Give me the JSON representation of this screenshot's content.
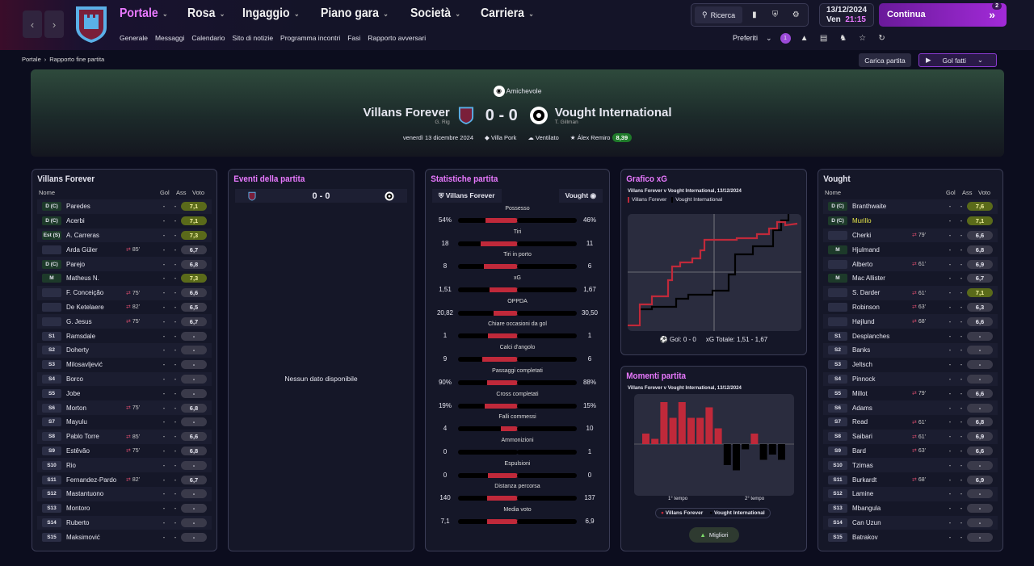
{
  "menu": {
    "items": [
      "Portale",
      "Rosa",
      "Ingaggio",
      "Piano gara",
      "Società",
      "Carriera"
    ],
    "sub": [
      "Generale",
      "Messaggi",
      "Calendario",
      "Sito di notizie",
      "Programma incontri",
      "Fasi",
      "Rapporto avversari"
    ]
  },
  "tools": {
    "search": "Ricerca"
  },
  "date": {
    "date": "13/12/2024",
    "day": "Ven",
    "time": "21:15"
  },
  "continua": {
    "label": "Continua",
    "badge": "2"
  },
  "pref": {
    "label": "Preferiti",
    "badge": "1"
  },
  "breadcrumb": {
    "root": "Portale",
    "current": "Rapporto fine partita"
  },
  "actions": {
    "carica": "Carica partita",
    "golfatti": "Gol fatti"
  },
  "match": {
    "competition": "Amichevole",
    "home": "Villans Forever",
    "home_coach": "G. Rig",
    "away": "Vought International",
    "away_coach": "T. Gillman",
    "score": "0 - 0",
    "date": "venerdì 13 dicembre 2024",
    "stadium": "Villa Pork",
    "weather": "Ventilato",
    "potm": "Álex Remiro",
    "potm_rating": "8,39"
  },
  "home": {
    "title": "Villans Forever",
    "cols": [
      "Nome",
      "Gol",
      "Ass",
      "Voto"
    ],
    "rows": [
      [
        "D (C)",
        "Paredes",
        "",
        "7,1"
      ],
      [
        "D (C)",
        "Acerbi",
        "",
        "7,1"
      ],
      [
        "Est (S)",
        "A. Carreras",
        "",
        "7,3"
      ],
      [
        "",
        "Arda Güler",
        "85'",
        "6,7"
      ],
      [
        "D (C)",
        "Parejo",
        "",
        "6,8"
      ],
      [
        "M",
        "Matheus N.",
        "",
        "7,3"
      ],
      [
        "",
        "F. Conceição",
        "75'",
        "6,6"
      ],
      [
        "",
        "De Ketelaere",
        "82'",
        "6,5"
      ],
      [
        "",
        "G. Jesus",
        "75'",
        "6,7"
      ],
      [
        "S1",
        "Ramsdale",
        "",
        "-"
      ],
      [
        "S2",
        "Doherty",
        "",
        "-"
      ],
      [
        "S3",
        "Milosavljević",
        "",
        "-"
      ],
      [
        "S4",
        "Borco",
        "",
        "-"
      ],
      [
        "S5",
        "Jobe",
        "",
        "-"
      ],
      [
        "S6",
        "Morton",
        "75'",
        "6,8"
      ],
      [
        "S7",
        "Mayulu",
        "",
        "-"
      ],
      [
        "S8",
        "Pablo Torre",
        "85'",
        "6,6"
      ],
      [
        "S9",
        "Estêvão",
        "75'",
        "6,8"
      ],
      [
        "S10",
        "Rio",
        "",
        "-"
      ],
      [
        "S11",
        "Fernandez-Pardo",
        "82'",
        "6,7"
      ],
      [
        "S12",
        "Mastantuono",
        "",
        "-"
      ],
      [
        "S13",
        "Montoro",
        "",
        "-"
      ],
      [
        "S14",
        "Ruberto",
        "",
        "-"
      ],
      [
        "S15",
        "Maksimović",
        "",
        "-"
      ]
    ]
  },
  "events": {
    "title": "Eventi della partita",
    "score": "0 - 0",
    "empty": "Nessun dato disponibile"
  },
  "stats": {
    "title": "Statistiche partita",
    "home": "Villans Forever",
    "away": "Vought",
    "rows": [
      [
        "Possesso",
        "54%",
        "46%",
        54
      ],
      [
        "Tiri",
        "18",
        "11",
        62
      ],
      [
        "Tiri in porto",
        "8",
        "6",
        57
      ],
      [
        "xG",
        "1,51",
        "1,67",
        47
      ],
      [
        "OPPDA",
        "20,82",
        "30,50",
        41
      ],
      [
        "Chiare occasioni da gol",
        "1",
        "1",
        50
      ],
      [
        "Calci d'angolo",
        "9",
        "6",
        60
      ],
      [
        "Passaggi completati",
        "90%",
        "88%",
        51
      ],
      [
        "Cross completati",
        "19%",
        "15%",
        56
      ],
      [
        "Falli commessi",
        "4",
        "10",
        29
      ],
      [
        "Ammonizioni",
        "0",
        "1",
        0
      ],
      [
        "Espulsioni",
        "0",
        "0",
        50
      ],
      [
        "Distanza percorsa",
        "140",
        "137",
        51
      ],
      [
        "Media voto",
        "7,1",
        "6,9",
        51
      ]
    ]
  },
  "xg": {
    "title": "Grafico xG",
    "subtitle": "Villans Forever v Vought International, 13/12/2024",
    "legend": [
      "Villans Forever",
      "Vought International"
    ],
    "footer_goals": "Gol: 0 - 0",
    "footer_xg": "xG Totale: 1,51 - 1,67",
    "colors": {
      "home": "#c0293a",
      "away": "#000000"
    }
  },
  "moments": {
    "title": "Momenti partita",
    "subtitle": "Villans Forever v Vought International, 13/12/2024",
    "h1": "1° tempo",
    "h2": "2° tempo",
    "legend": [
      "Villans Forever",
      "Vought International"
    ],
    "button": "Migliori",
    "values": [
      2,
      1,
      8,
      5,
      8,
      5,
      5,
      7,
      3,
      -4,
      -5,
      -1,
      2,
      -3,
      -2,
      -3
    ],
    "colors": {
      "home": "#c0293a",
      "away": "#000000"
    }
  },
  "away": {
    "title": "Vought",
    "cols": [
      "Nome",
      "Gol",
      "Ass",
      "Voto"
    ],
    "rows": [
      [
        "D (C)",
        "Branthwaite",
        "",
        "7,6"
      ],
      [
        "D (C)",
        "Murillo",
        "",
        "7,1"
      ],
      [
        "",
        "Cherki",
        "79'",
        "6,6"
      ],
      [
        "M",
        "Hjulmand",
        "",
        "6,8"
      ],
      [
        "",
        "Alberto",
        "61'",
        "6,9"
      ],
      [
        "M",
        "Mac Allister",
        "",
        "6,7"
      ],
      [
        "",
        "S. Darder",
        "61'",
        "7,1"
      ],
      [
        "",
        "Robinson",
        "63'",
        "6,3"
      ],
      [
        "",
        "Højlund",
        "68'",
        "6,6"
      ],
      [
        "S1",
        "Desplanches",
        "",
        "-"
      ],
      [
        "S2",
        "Banks",
        "",
        "-"
      ],
      [
        "S3",
        "Jeltsch",
        "",
        "-"
      ],
      [
        "S4",
        "Pinnock",
        "",
        "-"
      ],
      [
        "S5",
        "Millot",
        "79'",
        "6,6"
      ],
      [
        "S6",
        "Adams",
        "",
        "-"
      ],
      [
        "S7",
        "Read",
        "61'",
        "6,8"
      ],
      [
        "S8",
        "Saibari",
        "61'",
        "6,9"
      ],
      [
        "S9",
        "Bard",
        "63'",
        "6,6"
      ],
      [
        "S10",
        "Tzimas",
        "",
        "-"
      ],
      [
        "S11",
        "Burkardt",
        "68'",
        "6,9"
      ],
      [
        "S12",
        "Lamine",
        "",
        "-"
      ],
      [
        "S13",
        "Mbangula",
        "",
        "-"
      ],
      [
        "S14",
        "Can Uzun",
        "",
        "-"
      ],
      [
        "S15",
        "Batrakov",
        "",
        "-"
      ]
    ]
  }
}
